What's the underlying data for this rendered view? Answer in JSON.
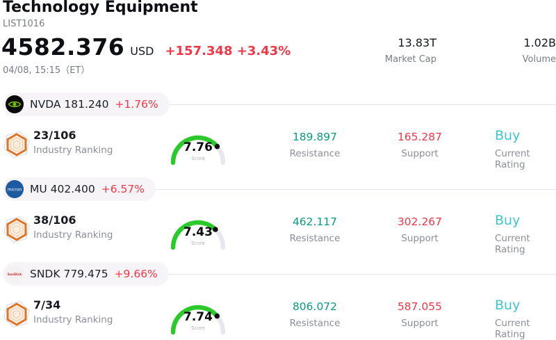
{
  "header": {
    "title": "Technology Equipment",
    "subtitle": "LIST1016",
    "price": "4582.376",
    "currency": "USD",
    "change": "+157.348 +3.43%",
    "timestamp": "04/08, 15:15（ET）",
    "market_cap": {
      "value": "13.83T",
      "label": "Market Cap"
    },
    "volume": {
      "value": "1.02B",
      "label": "Volume"
    }
  },
  "labels": {
    "industry_ranking": "Industry Ranking",
    "score": "Score",
    "resistance": "Resistance",
    "support": "Support",
    "current_rating": "Current Rating"
  },
  "stocks": [
    {
      "ticker": "NVDA",
      "price": "181.240",
      "ticker_price": "NVDA 181.240",
      "change": "+1.76%",
      "logo": "nvidia",
      "industry_ranking": "23/106",
      "score": 7.76,
      "resistance": "189.897",
      "support": "165.287",
      "rating": "Buy"
    },
    {
      "ticker": "MU",
      "price": "402.400",
      "ticker_price": "MU 402.400",
      "change": "+6.57%",
      "logo": "micron",
      "industry_ranking": "38/106",
      "score": 7.43,
      "resistance": "462.117",
      "support": "302.267",
      "rating": "Buy"
    },
    {
      "ticker": "SNDK",
      "price": "779.475",
      "ticker_price": "SNDK 779.475",
      "change": "+9.66%",
      "logo": "sandisk",
      "industry_ranking": "7/34",
      "score": 7.74,
      "resistance": "806.072",
      "support": "587.055",
      "rating": "Buy"
    }
  ],
  "colors": {
    "accent_red": "#f23645",
    "resistance_teal": "#089981",
    "rating_cyan": "#3fc6cc",
    "gauge_green": "#2bc92b",
    "gauge_track": "#e7e8ee",
    "gauge_dot": "#111111",
    "nvidia_green": "#76b900",
    "micron_blue": "#1e5aa0",
    "sandisk_red": "#d7312e"
  }
}
